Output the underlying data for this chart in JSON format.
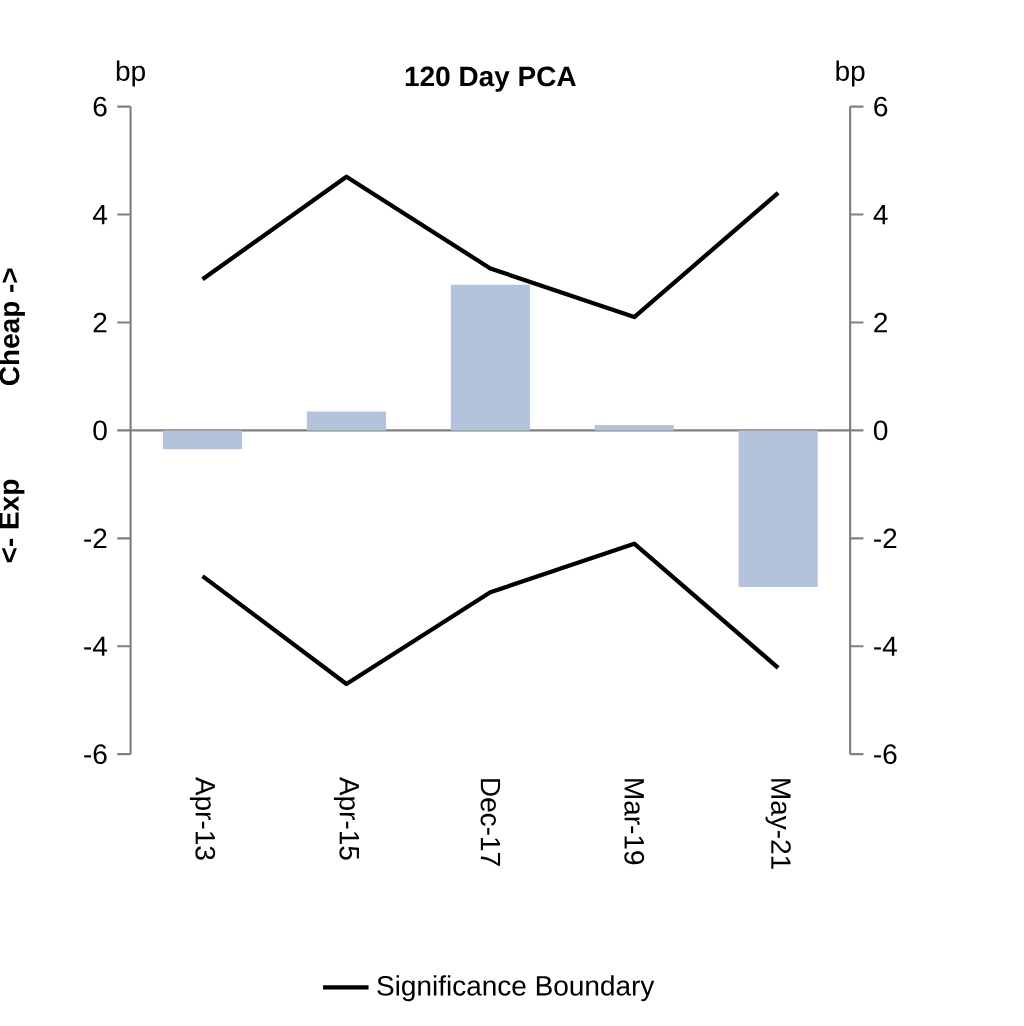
{
  "chart_data": {
    "type": "bar",
    "title": "120 Day PCA",
    "ylabel": "bp",
    "y2label": "bp",
    "annotations": [
      "Cheap ->",
      "<- Exp"
    ],
    "categories": [
      "Apr-13",
      "Apr-15",
      "Dec-17",
      "Mar-19",
      "May-21"
    ],
    "series": [
      {
        "color": "#b4c3dc",
        "values": [
          -0.35,
          0.35,
          2.7,
          0.1,
          -2.9
        ]
      },
      {
        "type": "line",
        "name": "Significance Boundary",
        "color": "#000000",
        "values": [
          2.8,
          4.7,
          3.0,
          2.1,
          4.4
        ]
      },
      {
        "type": "line",
        "color": "#000000",
        "values": [
          -2.7,
          -4.7,
          -3.0,
          -2.1,
          -4.4
        ]
      }
    ],
    "ylim": [
      -6,
      6
    ],
    "yticks": [
      -6,
      -4,
      -2,
      0,
      2,
      4,
      6
    ],
    "y2lim": [
      -6,
      6
    ],
    "y2ticks": [
      -6,
      -4,
      -2,
      0,
      2,
      4,
      6
    ],
    "legend": "bottom"
  }
}
